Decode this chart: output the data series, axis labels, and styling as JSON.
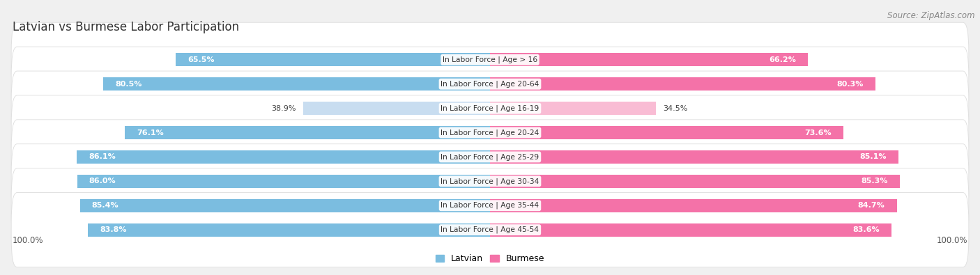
{
  "title": "Latvian vs Burmese Labor Participation",
  "source": "Source: ZipAtlas.com",
  "categories": [
    "In Labor Force | Age > 16",
    "In Labor Force | Age 20-64",
    "In Labor Force | Age 16-19",
    "In Labor Force | Age 20-24",
    "In Labor Force | Age 25-29",
    "In Labor Force | Age 30-34",
    "In Labor Force | Age 35-44",
    "In Labor Force | Age 45-54"
  ],
  "latvian_values": [
    65.5,
    80.5,
    38.9,
    76.1,
    86.1,
    86.0,
    85.4,
    83.8
  ],
  "burmese_values": [
    66.2,
    80.3,
    34.5,
    73.6,
    85.1,
    85.3,
    84.7,
    83.6
  ],
  "latvian_color": "#7bbde0",
  "latvian_color_light": "#c8ddf0",
  "burmese_color": "#f472a8",
  "burmese_color_light": "#f9bcd4",
  "label_latvian": "Latvian",
  "label_burmese": "Burmese",
  "background_color": "#f0f0f0",
  "row_bg_color": "#ffffff",
  "max_value": 100.0,
  "title_fontsize": 12,
  "label_fontsize": 8,
  "tick_fontsize": 8.5,
  "source_fontsize": 8.5
}
